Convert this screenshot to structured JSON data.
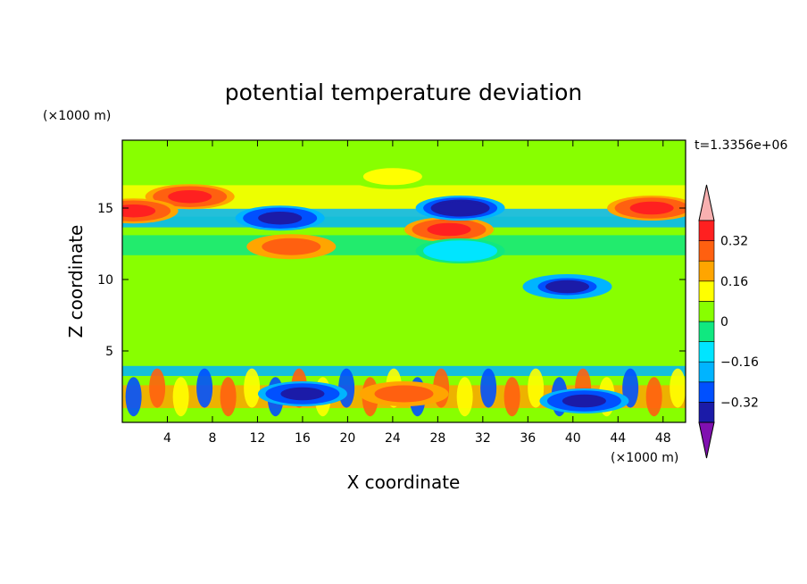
{
  "chart_data": {
    "type": "heatmap",
    "title": "potential temperature deviation",
    "xlabel": "X coordinate",
    "ylabel": "Z coordinate",
    "x_unit": "(×1000 m)",
    "y_unit": "(×1000 m)",
    "time_label": "t=1.3356e+06",
    "xlim": [
      0,
      50
    ],
    "ylim": [
      0,
      19.75
    ],
    "x_ticks": [
      4,
      8,
      12,
      16,
      20,
      24,
      28,
      32,
      36,
      40,
      44,
      48
    ],
    "y_ticks": [
      5,
      10,
      15
    ],
    "colorbar": {
      "levels": [
        -0.4,
        -0.32,
        -0.24,
        -0.16,
        -0.08,
        0,
        0.08,
        0.16,
        0.24,
        0.32,
        0.4
      ],
      "tick_labels": [
        "0.32",
        "0.16",
        "0",
        "−0.16",
        "−0.32"
      ],
      "tick_values": [
        0.32,
        0.16,
        0,
        -0.16,
        -0.32
      ],
      "colors": [
        "#8010b0",
        "#7010a0",
        "#1b1ba8",
        "#0050ff",
        "#00b4ff",
        "#00e5ff",
        "#10e880",
        "#88ff00",
        "#ffff00",
        "#ffa500",
        "#ff6010",
        "#ff2020",
        "#f8b0b0"
      ]
    },
    "field_features": [
      {
        "x": 6,
        "z": 15.8,
        "value": 0.36
      },
      {
        "x": 24,
        "z": 17.2,
        "value": 0.1
      },
      {
        "x": 29,
        "z": 13.5,
        "value": 0.36
      },
      {
        "x": 15,
        "z": 12.3,
        "value": 0.3
      },
      {
        "x": 30,
        "z": 15.0,
        "value": -0.38
      },
      {
        "x": 14,
        "z": 14.3,
        "value": -0.36
      },
      {
        "x": 30,
        "z": 12.0,
        "value": -0.12
      },
      {
        "x": 47,
        "z": 15.0,
        "value": 0.36
      },
      {
        "x": 1,
        "z": 14.8,
        "value": 0.36
      },
      {
        "x": 39.5,
        "z": 9.5,
        "value": -0.34
      },
      {
        "x": 25,
        "z": 2,
        "value": 0.3
      },
      {
        "x": 16,
        "z": 2,
        "value": -0.36
      },
      {
        "x": 41,
        "z": 1.5,
        "value": -0.36
      }
    ]
  }
}
